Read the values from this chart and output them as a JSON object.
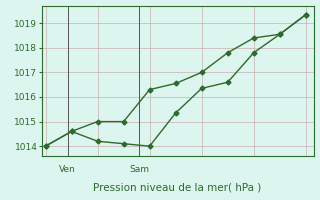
{
  "line1_x": [
    0,
    1,
    2,
    3,
    4,
    5,
    6,
    7,
    8,
    9,
    10
  ],
  "line1_y": [
    1014.0,
    1014.6,
    1015.0,
    1015.0,
    1016.3,
    1016.55,
    1017.0,
    1017.8,
    1018.4,
    1018.55,
    1019.35
  ],
  "line2_x": [
    0,
    1,
    2,
    3,
    4,
    5,
    6,
    7,
    8,
    9,
    10
  ],
  "line2_y": [
    1014.0,
    1014.6,
    1014.2,
    1014.1,
    1014.0,
    1015.35,
    1016.35,
    1016.6,
    1017.8,
    1018.55,
    1019.35
  ],
  "ven_x": 0.85,
  "sam_x": 3.6,
  "ylim": [
    1013.6,
    1019.7
  ],
  "xlim": [
    -0.15,
    10.3
  ],
  "yticks": [
    1014,
    1015,
    1016,
    1017,
    1018,
    1019
  ],
  "line_color": "#2d6a2d",
  "marker_color": "#2d6a2d",
  "bg_color": "#ddf5ef",
  "grid_color": "#c8b0b0",
  "axis_color": "#2d6a2d",
  "vline_color": "#555555",
  "xlabel": "Pression niveau de la mer( hPa )",
  "xlabel_color": "#2d6a2d",
  "xlabel_fontsize": 7.5,
  "tick_fontsize": 6.5,
  "day_label_fontsize": 6.5,
  "ven_label": "Ven",
  "sam_label": "Sam"
}
